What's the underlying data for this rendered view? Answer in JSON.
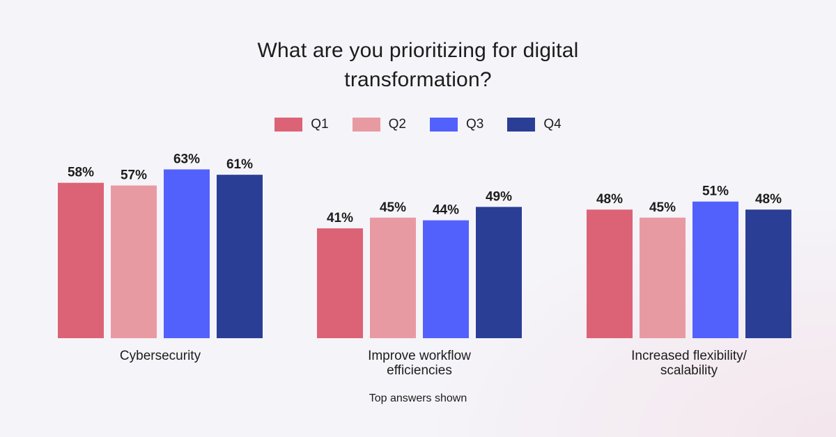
{
  "chart_data": {
    "type": "bar",
    "title": [
      "What are you prioritizing for digital",
      "transformation?"
    ],
    "categories": [
      [
        "Cybersecurity"
      ],
      [
        "Improve workflow",
        "efficiencies"
      ],
      [
        "Increased flexibility/",
        "scalability"
      ]
    ],
    "series": [
      {
        "name": "Q1",
        "color": "#dc6375",
        "values": [
          58,
          41,
          48
        ]
      },
      {
        "name": "Q2",
        "color": "#e89aa3",
        "values": [
          57,
          45,
          45
        ]
      },
      {
        "name": "Q3",
        "color": "#5361fc",
        "values": [
          63,
          44,
          51
        ]
      },
      {
        "name": "Q4",
        "color": "#2a3e95",
        "values": [
          61,
          49,
          48
        ]
      }
    ],
    "value_suffix": "%",
    "ylim": [
      0,
      100
    ],
    "legend": "top-center",
    "grid": false,
    "footnote": "Top answers shown"
  }
}
